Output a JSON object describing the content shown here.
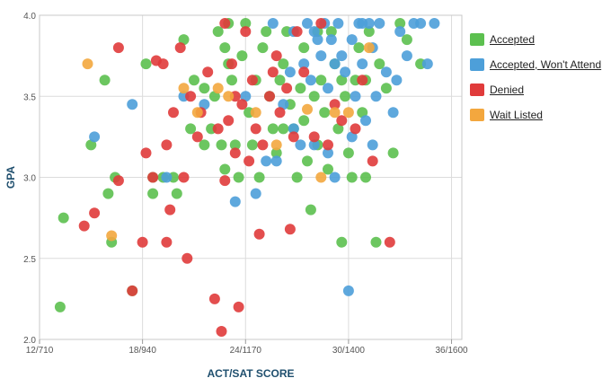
{
  "chart_data": {
    "type": "scatter",
    "title": "",
    "xlabel": "ACT/SAT SCORE",
    "ylabel": "GPA",
    "x_ticks": [
      {
        "value": 12,
        "label": "12/710"
      },
      {
        "value": 18,
        "label": "18/940"
      },
      {
        "value": 24,
        "label": "24/1170"
      },
      {
        "value": 30,
        "label": "30/1400"
      },
      {
        "value": 36,
        "label": "36/1600"
      }
    ],
    "y_ticks": [
      {
        "value": 2.0,
        "label": "2.0"
      },
      {
        "value": 2.5,
        "label": "2.5"
      },
      {
        "value": 3.0,
        "label": "3.0"
      },
      {
        "value": 3.5,
        "label": "3.5"
      },
      {
        "value": 4.0,
        "label": "4.0"
      }
    ],
    "xlim": [
      12,
      36.6
    ],
    "ylim": [
      2.0,
      4.0
    ],
    "grid": true,
    "legend_position": "right",
    "series": [
      {
        "name": "Accepted",
        "color": "#5cc04f",
        "points": [
          [
            13.2,
            2.2
          ],
          [
            13.4,
            2.75
          ],
          [
            15,
            3.2
          ],
          [
            15.8,
            3.6
          ],
          [
            16.2,
            2.6
          ],
          [
            16,
            2.9
          ],
          [
            16.4,
            3.0
          ],
          [
            17.4,
            2.3
          ],
          [
            18.2,
            3.7
          ],
          [
            18.6,
            3.0
          ],
          [
            18.6,
            2.9
          ],
          [
            19.2,
            3.0
          ],
          [
            19.8,
            3.0
          ],
          [
            20,
            2.9
          ],
          [
            20.4,
            3.85
          ],
          [
            20.8,
            3.3
          ],
          [
            21,
            3.6
          ],
          [
            21.6,
            3.2
          ],
          [
            21.6,
            3.55
          ],
          [
            22,
            3.3
          ],
          [
            22.2,
            3.5
          ],
          [
            22.4,
            3.9
          ],
          [
            22.6,
            3.2
          ],
          [
            22.8,
            3.8
          ],
          [
            23,
            3.95
          ],
          [
            23.2,
            3.6
          ],
          [
            23.4,
            3.2
          ],
          [
            23.6,
            3.0
          ],
          [
            23.8,
            3.75
          ],
          [
            24,
            3.95
          ],
          [
            24.2,
            3.4
          ],
          [
            24.4,
            3.2
          ],
          [
            24.6,
            3.6
          ],
          [
            25,
            3.8
          ],
          [
            25.2,
            3.9
          ],
          [
            25.4,
            3.5
          ],
          [
            25.6,
            3.3
          ],
          [
            25.8,
            3.15
          ],
          [
            26,
            3.6
          ],
          [
            26.2,
            3.7
          ],
          [
            26.4,
            3.9
          ],
          [
            26.6,
            3.45
          ],
          [
            26.8,
            3.3
          ],
          [
            27,
            3.0
          ],
          [
            27.2,
            3.55
          ],
          [
            27.4,
            3.8
          ],
          [
            27.6,
            3.1
          ],
          [
            27.8,
            2.8
          ],
          [
            28,
            3.5
          ],
          [
            28.2,
            3.2
          ],
          [
            28.4,
            3.6
          ],
          [
            28.6,
            3.4
          ],
          [
            28.8,
            3.05
          ],
          [
            29,
            3.9
          ],
          [
            29.2,
            3.7
          ],
          [
            29.4,
            3.3
          ],
          [
            29.6,
            2.6
          ],
          [
            29.8,
            3.5
          ],
          [
            30,
            3.15
          ],
          [
            30.2,
            3.0
          ],
          [
            30.4,
            3.6
          ],
          [
            30.6,
            3.8
          ],
          [
            30.8,
            3.4
          ],
          [
            31,
            3.0
          ],
          [
            31.2,
            3.9
          ],
          [
            31.6,
            2.6
          ],
          [
            31.8,
            3.7
          ],
          [
            32.2,
            3.55
          ],
          [
            32.6,
            3.15
          ],
          [
            33,
            3.95
          ],
          [
            33.4,
            3.85
          ],
          [
            34.2,
            3.7
          ],
          [
            24.8,
            3.0
          ],
          [
            26.2,
            3.3
          ],
          [
            28.2,
            3.9
          ],
          [
            29.6,
            3.6
          ],
          [
            31,
            3.6
          ],
          [
            23,
            3.7
          ],
          [
            27.4,
            3.35
          ],
          [
            22.8,
            3.05
          ]
        ]
      },
      {
        "name": "Accepted, Won't Attend",
        "color": "#4d9fd9",
        "points": [
          [
            15.2,
            3.25
          ],
          [
            17.4,
            3.45
          ],
          [
            19.4,
            3.0
          ],
          [
            20.4,
            3.5
          ],
          [
            21.6,
            3.45
          ],
          [
            23.4,
            2.85
          ],
          [
            24.6,
            2.9
          ],
          [
            25.2,
            3.1
          ],
          [
            25.8,
            3.1
          ],
          [
            26.2,
            3.45
          ],
          [
            26.6,
            3.65
          ],
          [
            26.8,
            3.9
          ],
          [
            27.2,
            3.2
          ],
          [
            27.4,
            3.7
          ],
          [
            27.6,
            3.95
          ],
          [
            27.8,
            3.6
          ],
          [
            28,
            3.2
          ],
          [
            28.2,
            3.85
          ],
          [
            28.4,
            3.75
          ],
          [
            28.6,
            3.95
          ],
          [
            28.8,
            3.55
          ],
          [
            29,
            3.85
          ],
          [
            29.2,
            3.0
          ],
          [
            29.4,
            3.95
          ],
          [
            29.6,
            3.75
          ],
          [
            29.8,
            3.65
          ],
          [
            30,
            2.3
          ],
          [
            30.2,
            3.85
          ],
          [
            30.4,
            3.5
          ],
          [
            30.6,
            3.95
          ],
          [
            30.8,
            3.7
          ],
          [
            31,
            3.35
          ],
          [
            31.2,
            3.95
          ],
          [
            31.4,
            3.8
          ],
          [
            31.6,
            3.5
          ],
          [
            31.8,
            3.95
          ],
          [
            32.2,
            3.65
          ],
          [
            32.6,
            3.4
          ],
          [
            33,
            3.9
          ],
          [
            33.4,
            3.75
          ],
          [
            33.8,
            3.95
          ],
          [
            34.2,
            3.95
          ],
          [
            34.6,
            3.7
          ],
          [
            35,
            3.95
          ],
          [
            24,
            3.5
          ],
          [
            25.6,
            3.95
          ],
          [
            26.8,
            3.3
          ],
          [
            28.8,
            3.15
          ],
          [
            30.2,
            3.25
          ],
          [
            31.4,
            3.2
          ],
          [
            29.2,
            3.7
          ],
          [
            28,
            3.9
          ],
          [
            30.8,
            3.95
          ],
          [
            32.8,
            3.6
          ]
        ]
      },
      {
        "name": "Denied",
        "color": "#e03b3b",
        "points": [
          [
            14.6,
            2.7
          ],
          [
            15.2,
            2.78
          ],
          [
            16.6,
            3.8
          ],
          [
            16.6,
            2.98
          ],
          [
            17.4,
            2.3
          ],
          [
            18,
            2.6
          ],
          [
            18.2,
            3.15
          ],
          [
            18.6,
            3.0
          ],
          [
            18.8,
            3.72
          ],
          [
            19.2,
            3.7
          ],
          [
            19.4,
            3.2
          ],
          [
            19.4,
            2.6
          ],
          [
            19.6,
            2.8
          ],
          [
            19.8,
            3.4
          ],
          [
            20.2,
            3.8
          ],
          [
            20.4,
            3.0
          ],
          [
            20.6,
            2.5
          ],
          [
            20.8,
            3.5
          ],
          [
            21.2,
            3.25
          ],
          [
            21.4,
            3.4
          ],
          [
            21.8,
            3.65
          ],
          [
            22.2,
            2.25
          ],
          [
            22.4,
            3.3
          ],
          [
            22.6,
            2.05
          ],
          [
            22.8,
            2.98
          ],
          [
            23,
            3.35
          ],
          [
            23.2,
            3.7
          ],
          [
            23.4,
            3.15
          ],
          [
            23.6,
            2.2
          ],
          [
            23.8,
            3.45
          ],
          [
            24,
            3.9
          ],
          [
            24.4,
            3.6
          ],
          [
            24.6,
            3.3
          ],
          [
            24.8,
            2.65
          ],
          [
            25,
            3.2
          ],
          [
            25.4,
            3.5
          ],
          [
            25.8,
            3.75
          ],
          [
            26,
            3.4
          ],
          [
            26.4,
            3.55
          ],
          [
            26.6,
            2.68
          ],
          [
            27,
            3.9
          ],
          [
            27.4,
            3.65
          ],
          [
            28,
            3.25
          ],
          [
            28.4,
            3.95
          ],
          [
            28.8,
            3.2
          ],
          [
            29.2,
            3.45
          ],
          [
            29.6,
            3.35
          ],
          [
            30.4,
            3.3
          ],
          [
            30.8,
            3.6
          ],
          [
            31.4,
            3.1
          ],
          [
            32.4,
            2.6
          ],
          [
            22.8,
            3.95
          ],
          [
            24.2,
            3.1
          ],
          [
            25.6,
            3.65
          ],
          [
            23.4,
            3.5
          ],
          [
            26.8,
            3.25
          ]
        ]
      },
      {
        "name": "Wait Listed",
        "color": "#f3a73e",
        "points": [
          [
            14.8,
            3.7
          ],
          [
            16.2,
            2.64
          ],
          [
            20.4,
            3.55
          ],
          [
            21.2,
            3.4
          ],
          [
            23,
            3.5
          ],
          [
            24.6,
            3.4
          ],
          [
            27.6,
            3.42
          ],
          [
            28.4,
            3.0
          ],
          [
            29.2,
            3.4
          ],
          [
            30,
            3.4
          ],
          [
            31.2,
            3.8
          ],
          [
            22.4,
            3.55
          ],
          [
            25.8,
            3.2
          ]
        ]
      }
    ]
  }
}
